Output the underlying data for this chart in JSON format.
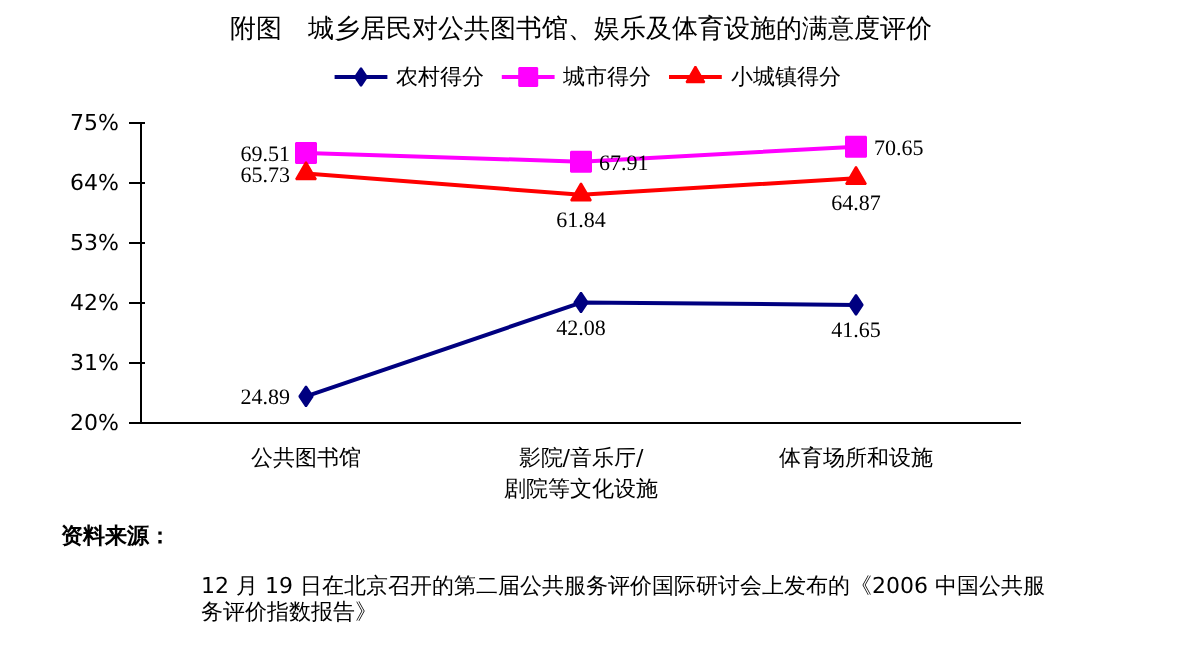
{
  "chart_data": {
    "type": "line",
    "title": "附图　城乡居民对公共图书馆、娱乐及体育设施的满意度评价",
    "categories": [
      "公共图书馆",
      "影院/音乐厅/\n剧院等文化设施",
      "体育场所和设施"
    ],
    "series": [
      {
        "name": "农村得分",
        "color": "#000080",
        "marker": "diamond",
        "values": [
          24.89,
          42.08,
          41.65
        ]
      },
      {
        "name": "城市得分",
        "color": "#ff00ff",
        "marker": "square",
        "values": [
          69.51,
          67.91,
          70.65
        ]
      },
      {
        "name": "小城镇得分",
        "color": "#ff0000",
        "marker": "triangle",
        "values": [
          65.73,
          61.84,
          64.87
        ]
      }
    ],
    "ylim": [
      20,
      75
    ],
    "yticks": [
      {
        "value": 20,
        "label": "20%"
      },
      {
        "value": 31,
        "label": "31%"
      },
      {
        "value": 42,
        "label": "42%"
      },
      {
        "value": 53,
        "label": "53%"
      },
      {
        "value": 64,
        "label": "64%"
      },
      {
        "value": 75,
        "label": "75%"
      }
    ],
    "data_labels": true,
    "legend": "top",
    "grid": false,
    "line_style": "solid",
    "annotations": [
      "资料来源：",
      "12 月 19 日在北京召开的第二届公共服务评价国际研讨会上发布的《2006 中国公共服务评价指数报告》"
    ]
  }
}
